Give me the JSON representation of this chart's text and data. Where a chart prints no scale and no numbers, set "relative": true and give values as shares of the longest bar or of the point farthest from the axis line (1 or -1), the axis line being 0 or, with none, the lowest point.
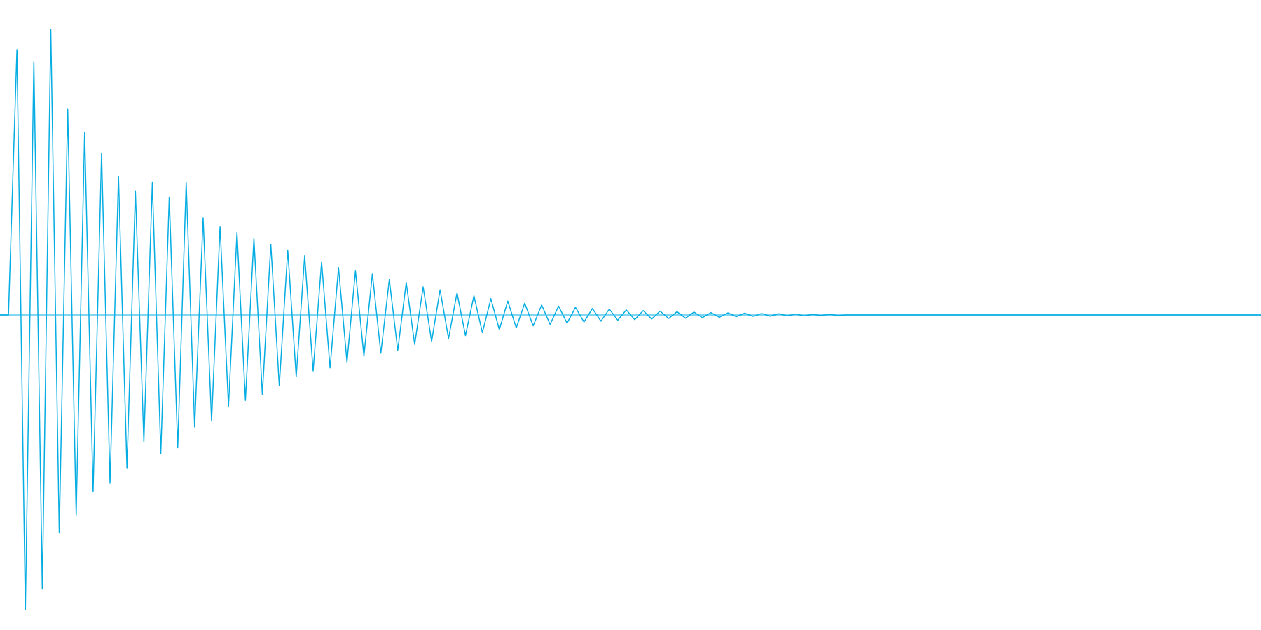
{
  "chart_data": {
    "type": "line",
    "relative": true,
    "color": "#05ade3",
    "ref_lines": [
      {
        "axis": "y",
        "value": 0,
        "color": "#05ade3"
      }
    ],
    "categories": [
      null,
      null,
      null,
      null,
      null,
      null,
      null,
      null,
      null,
      null,
      null,
      null,
      null,
      null,
      null,
      null,
      null,
      null,
      null,
      null,
      null,
      null,
      null,
      null,
      null,
      null,
      null,
      null,
      null,
      null,
      null,
      null,
      null,
      null,
      null,
      null,
      null,
      null,
      null,
      null,
      null,
      null,
      null,
      null,
      null,
      null,
      null,
      null,
      null,
      null,
      null,
      null,
      null,
      null,
      null,
      null,
      null,
      null,
      null,
      null,
      null,
      null,
      null,
      null,
      null,
      null,
      null,
      null,
      null,
      null,
      null,
      null,
      null,
      null,
      null,
      null,
      null,
      null,
      null,
      null,
      null,
      null,
      null,
      null,
      null,
      null,
      null,
      null,
      null,
      null,
      null,
      null,
      null,
      null,
      null,
      null,
      null,
      null,
      null,
      null,
      null,
      null,
      null,
      null,
      null,
      null,
      null,
      null,
      null,
      null,
      null,
      null,
      null,
      null,
      null,
      null,
      null,
      null,
      null,
      null,
      null,
      null,
      null,
      null,
      null,
      null,
      null,
      null,
      null,
      null,
      null,
      null,
      null,
      null,
      null,
      null,
      null,
      null,
      null,
      null,
      null,
      null,
      null,
      null,
      null,
      null,
      null,
      null,
      null,
      null
    ],
    "values": [
      0,
      0,
      0.9,
      -1.0,
      0.86,
      -0.93,
      0.97,
      -0.74,
      0.7,
      -0.68,
      0.62,
      -0.6,
      0.55,
      -0.57,
      0.47,
      -0.52,
      0.42,
      -0.43,
      0.45,
      -0.47,
      0.4,
      -0.45,
      0.45,
      -0.38,
      0.33,
      -0.36,
      0.3,
      -0.31,
      0.28,
      -0.29,
      0.26,
      -0.27,
      0.24,
      -0.24,
      0.22,
      -0.21,
      0.2,
      -0.19,
      0.18,
      -0.18,
      0.16,
      -0.16,
      0.15,
      -0.14,
      0.14,
      -0.13,
      0.12,
      -0.12,
      0.11,
      -0.1,
      0.095,
      -0.09,
      0.085,
      -0.08,
      0.075,
      -0.07,
      0.065,
      -0.06,
      0.055,
      -0.05,
      0.047,
      -0.044,
      0.04,
      -0.037,
      0.034,
      -0.032,
      0.03,
      -0.028,
      0.026,
      -0.024,
      0.022,
      -0.021,
      0.02,
      -0.018,
      0.017,
      -0.016,
      0.015,
      -0.014,
      0.013,
      -0.012,
      0.011,
      -0.011,
      0.01,
      -0.009,
      0.008,
      -0.008,
      0.007,
      -0.006,
      0.006,
      -0.005,
      0.005,
      -0.004,
      0.004,
      -0.003,
      0.003,
      -0.003,
      0.002,
      -0.002,
      0.002,
      -0.002,
      0,
      0,
      0,
      0,
      0,
      0,
      0,
      0,
      0,
      0,
      0,
      0,
      0,
      0,
      0,
      0,
      0,
      0,
      0,
      0,
      0,
      0,
      0,
      0,
      0,
      0,
      0,
      0,
      0,
      0,
      0,
      0,
      0,
      0,
      0,
      0,
      0,
      0,
      0,
      0,
      0,
      0,
      0,
      0,
      0,
      0,
      0,
      0,
      0,
      0
    ]
  }
}
